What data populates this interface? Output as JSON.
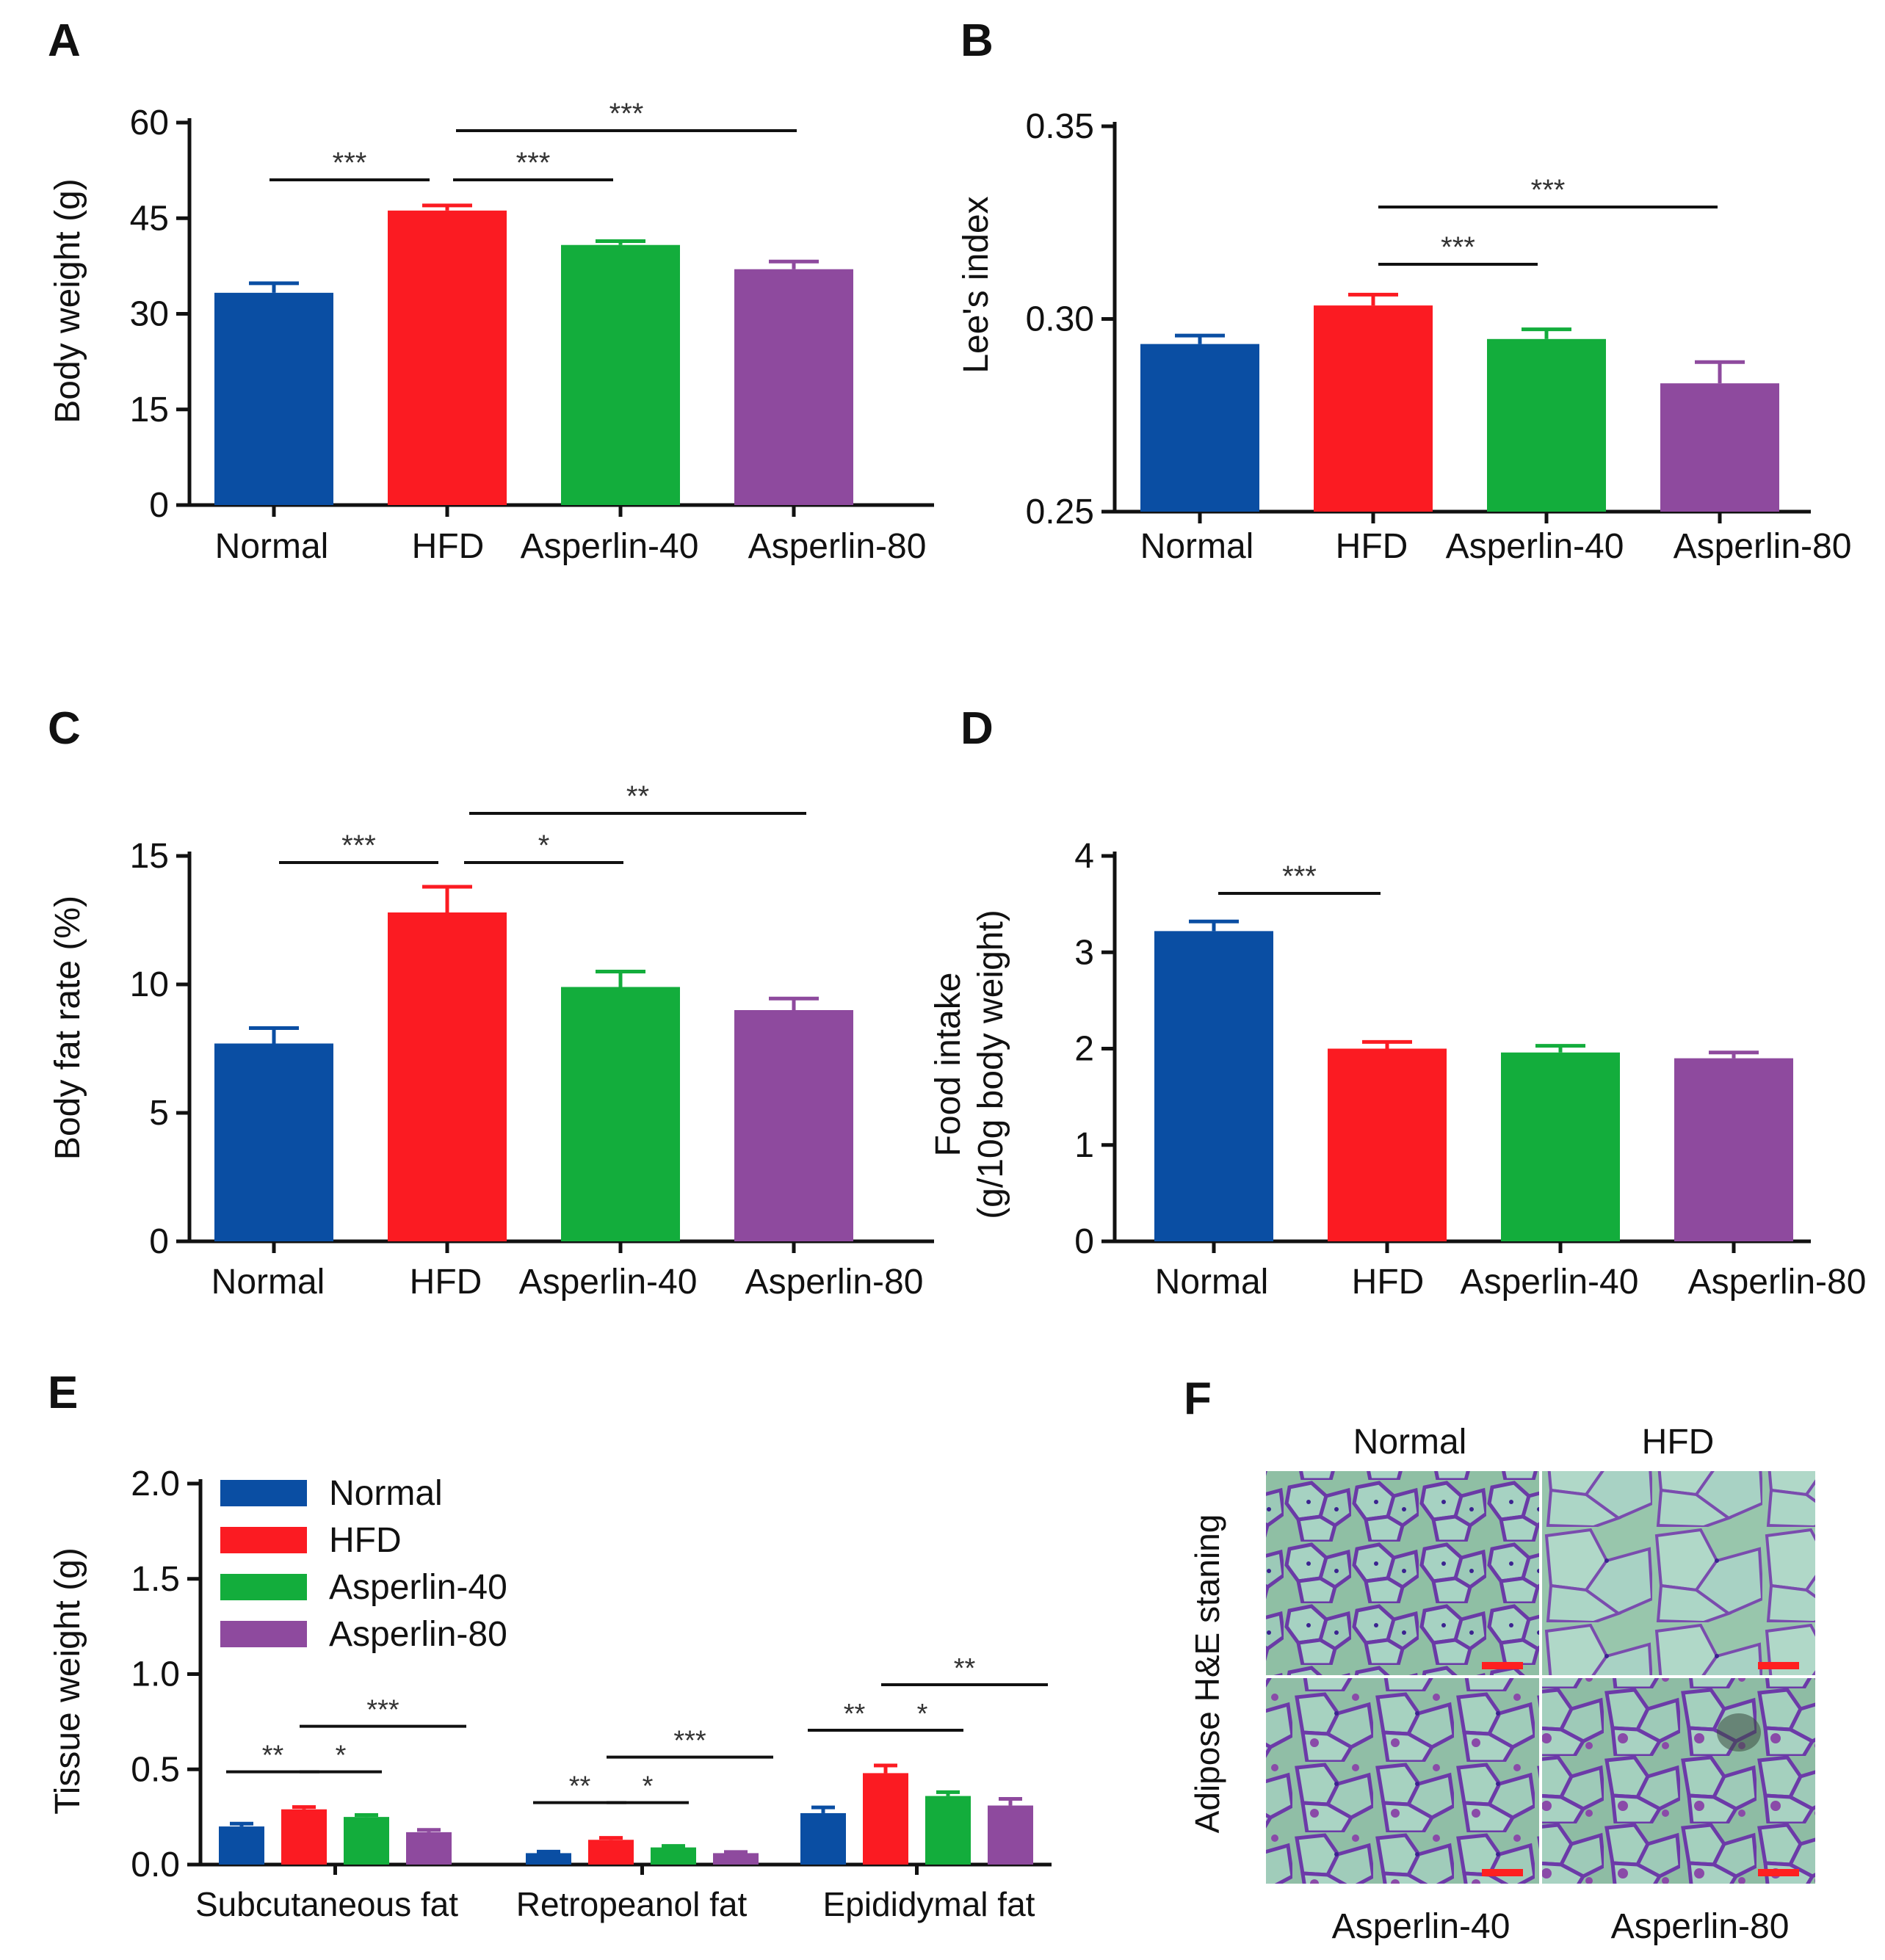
{
  "colors": {
    "Normal": "#0a4ea3",
    "HFD": "#fb1b22",
    "Asperlin-40": "#13ad3c",
    "Asperlin-80": "#8e4a9e",
    "axis": "#111111",
    "scalebar": "#ff2020"
  },
  "chart_data": [
    {
      "id": "A",
      "panel_label": "A",
      "type": "bar",
      "categories": [
        "Normal",
        "HFD",
        "Asperlin-40",
        "Asperlin-80"
      ],
      "values": [
        33.3,
        46.2,
        40.8,
        37.0
      ],
      "errors": [
        1.5,
        0.8,
        0.6,
        1.2
      ],
      "ylabel": "Body weight (g)",
      "ylim": [
        0,
        60
      ],
      "yticks": [
        0,
        15,
        30,
        45,
        60
      ],
      "ytick_labels": [
        "0",
        "15",
        "30",
        "45",
        "60"
      ],
      "significance": [
        {
          "from": 0,
          "to": 1,
          "label": "***"
        },
        {
          "from": 1,
          "to": 2,
          "label": "***"
        },
        {
          "from": 1,
          "to": 3,
          "label": "***"
        }
      ]
    },
    {
      "id": "B",
      "panel_label": "B",
      "type": "bar",
      "categories": [
        "Normal",
        "HFD",
        "Asperlin-40",
        "Asperlin-80"
      ],
      "values": [
        0.2935,
        0.3035,
        0.2948,
        0.2833
      ],
      "errors": [
        0.0022,
        0.0028,
        0.0025,
        0.0055
      ],
      "ylabel": "Lee's index",
      "ylim": [
        0.25,
        0.35
      ],
      "yticks": [
        0.25,
        0.3,
        0.35
      ],
      "ytick_labels": [
        "0.25",
        "0.30",
        "0.35"
      ],
      "significance": [
        {
          "from": 1,
          "to": 2,
          "label": "***"
        },
        {
          "from": 1,
          "to": 3,
          "label": "***"
        }
      ]
    },
    {
      "id": "C",
      "panel_label": "C",
      "type": "bar",
      "categories": [
        "Normal",
        "HFD",
        "Asperlin-40",
        "Asperlin-80"
      ],
      "values": [
        7.7,
        12.8,
        9.9,
        9.0
      ],
      "errors": [
        0.6,
        1.0,
        0.6,
        0.45
      ],
      "ylabel": "Body fat rate (%)",
      "ylim": [
        0,
        15
      ],
      "yticks": [
        0,
        5,
        10,
        15
      ],
      "ytick_labels": [
        "0",
        "5",
        "10",
        "15"
      ],
      "significance": [
        {
          "from": 0,
          "to": 1,
          "label": "***"
        },
        {
          "from": 1,
          "to": 2,
          "label": "*"
        },
        {
          "from": 1,
          "to": 3,
          "label": "**"
        }
      ]
    },
    {
      "id": "D",
      "panel_label": "D",
      "type": "bar",
      "categories": [
        "Normal",
        "HFD",
        "Asperlin-40",
        "Asperlin-80"
      ],
      "values": [
        3.22,
        2.0,
        1.96,
        1.9
      ],
      "errors": [
        0.1,
        0.07,
        0.07,
        0.06
      ],
      "ylabel_lines": [
        "Food intake",
        "(g/10g body weight)"
      ],
      "ylim": [
        0,
        4
      ],
      "yticks": [
        0,
        1,
        2,
        3,
        4
      ],
      "ytick_labels": [
        "0",
        "1",
        "2",
        "3",
        "4"
      ],
      "significance": [
        {
          "from": 0,
          "to": 1,
          "label": "***"
        }
      ]
    },
    {
      "id": "E",
      "panel_label": "E",
      "type": "bar",
      "categories": [
        "Subcutaneous fat",
        "Retropeanol fat",
        "Epididymal fat"
      ],
      "series": [
        {
          "name": "Normal",
          "values": [
            0.2,
            0.06,
            0.27
          ],
          "errors": [
            0.015,
            0.008,
            0.03
          ]
        },
        {
          "name": "HFD",
          "values": [
            0.29,
            0.13,
            0.48
          ],
          "errors": [
            0.012,
            0.01,
            0.04
          ]
        },
        {
          "name": "Asperlin-40",
          "values": [
            0.25,
            0.09,
            0.36
          ],
          "errors": [
            0.01,
            0.008,
            0.02
          ]
        },
        {
          "name": "Asperlin-80",
          "values": [
            0.17,
            0.06,
            0.31
          ],
          "errors": [
            0.012,
            0.006,
            0.035
          ]
        }
      ],
      "ylabel": "Tissue weight (g)",
      "ylim": [
        0,
        2.0
      ],
      "yticks": [
        0,
        0.5,
        1.0,
        1.5,
        2.0
      ],
      "ytick_labels": [
        "0.0",
        "0.5",
        "1.0",
        "1.5",
        "2.0"
      ],
      "legend_labels": [
        "Normal",
        "HFD",
        "Asperlin-40",
        "Asperlin-80"
      ],
      "legend_position": "top-left",
      "significance": [
        {
          "group": 0,
          "from": 0,
          "to": 1,
          "label": "**"
        },
        {
          "group": 0,
          "from": 1,
          "to": 2,
          "label": "*"
        },
        {
          "group": 0,
          "from": 1,
          "to": 3,
          "label": "***"
        },
        {
          "group": 1,
          "from": 0,
          "to": 1,
          "label": "**"
        },
        {
          "group": 1,
          "from": 1,
          "to": 2,
          "label": "*"
        },
        {
          "group": 1,
          "from": 1,
          "to": 3,
          "label": "***"
        },
        {
          "group": 2,
          "from": 0,
          "to": 1,
          "label": "**"
        },
        {
          "group": 2,
          "from": 1,
          "to": 2,
          "label": "*"
        },
        {
          "group": 2,
          "from": 1,
          "to": 3,
          "label": "**"
        }
      ]
    }
  ],
  "histology": {
    "panel_label": "F",
    "side_label": "Adipose H&E staning",
    "top_labels": [
      "Normal",
      "HFD"
    ],
    "bottom_labels": [
      "Asperlin-40",
      "Asperlin-80"
    ]
  }
}
